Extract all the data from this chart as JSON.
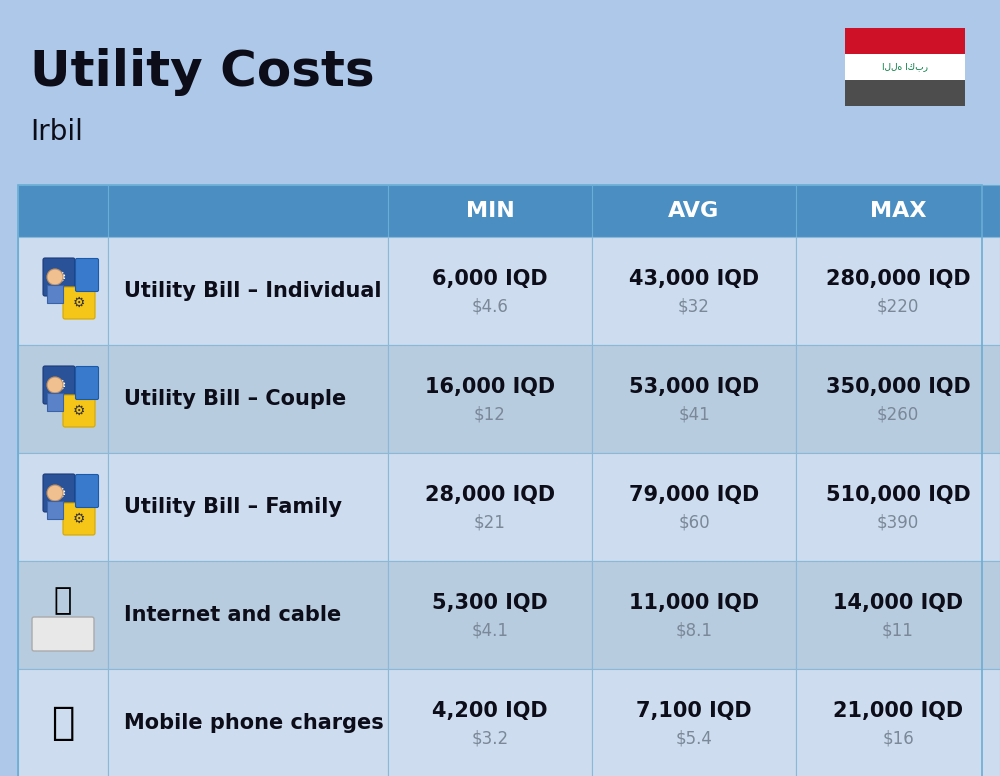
{
  "title": "Utility Costs",
  "subtitle": "Irbil",
  "background_color": "#adc8e8",
  "header_bg_color": "#4a8ec2",
  "header_text_color": "#ffffff",
  "row_bg_light": "#cddcee",
  "row_bg_dark": "#b8ccdf",
  "col_header_labels": [
    "MIN",
    "AVG",
    "MAX"
  ],
  "rows": [
    {
      "label": "Utility Bill – Individual",
      "min_iqd": "6,000 IQD",
      "min_usd": "$4.6",
      "avg_iqd": "43,000 IQD",
      "avg_usd": "$32",
      "max_iqd": "280,000 IQD",
      "max_usd": "$220"
    },
    {
      "label": "Utility Bill – Couple",
      "min_iqd": "16,000 IQD",
      "min_usd": "$12",
      "avg_iqd": "53,000 IQD",
      "avg_usd": "$41",
      "max_iqd": "350,000 IQD",
      "max_usd": "$260"
    },
    {
      "label": "Utility Bill – Family",
      "min_iqd": "28,000 IQD",
      "min_usd": "$21",
      "avg_iqd": "79,000 IQD",
      "avg_usd": "$60",
      "max_iqd": "510,000 IQD",
      "max_usd": "$390"
    },
    {
      "label": "Internet and cable",
      "min_iqd": "5,300 IQD",
      "min_usd": "$4.1",
      "avg_iqd": "11,000 IQD",
      "avg_usd": "$8.1",
      "max_iqd": "14,000 IQD",
      "max_usd": "$11"
    },
    {
      "label": "Mobile phone charges",
      "min_iqd": "4,200 IQD",
      "min_usd": "$3.2",
      "avg_iqd": "7,100 IQD",
      "avg_usd": "$5.4",
      "max_iqd": "21,000 IQD",
      "max_usd": "$16"
    }
  ],
  "title_fontsize": 36,
  "subtitle_fontsize": 20,
  "label_fontsize": 15,
  "value_fontsize": 15,
  "usd_fontsize": 12,
  "header_fontsize": 16,
  "text_color_dark": "#0d0d1a",
  "usd_color": "#7a8899",
  "flag_red": "#ce1126",
  "flag_white": "#ffffff",
  "flag_black": "#4d4d4d",
  "flag_green": "#007a3d"
}
